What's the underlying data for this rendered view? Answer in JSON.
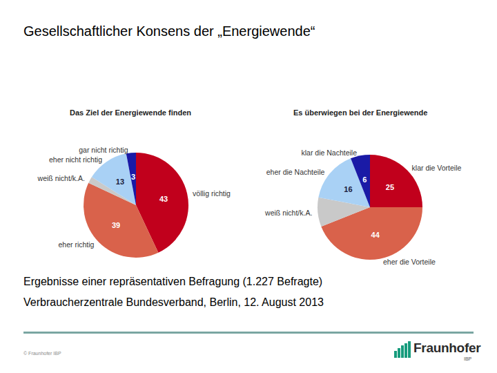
{
  "title": "Gesellschaftlicher Konsens der „Energiewende“",
  "chart_data": [
    {
      "type": "pie",
      "title": "Das Ziel der Energiewende finden",
      "categories": [
        "völlig richtig",
        "eher richtig",
        "weiß nicht/k.A.",
        "eher nicht richtig",
        "gar nicht richtig"
      ],
      "values": [
        43,
        39,
        2,
        13,
        3
      ],
      "value_labels": [
        "43",
        "39",
        null,
        "13",
        "3"
      ],
      "colors": [
        "#c1001c",
        "#d9624b",
        "#c9c9c9",
        "#a9d1f5",
        "#1a1aa6"
      ],
      "data_labels": true
    },
    {
      "type": "pie",
      "title": "Es überwiegen bei der Energiewende",
      "categories": [
        "klar die Vorteile",
        "eher die Vorteile",
        "weiß nicht/k.A.",
        "eher die Nachteile",
        "klar die Nachteile"
      ],
      "values": [
        25,
        44,
        9,
        16,
        6
      ],
      "value_labels": [
        "25",
        "44",
        null,
        "16",
        "6"
      ],
      "colors": [
        "#c1001c",
        "#d9624b",
        "#c9c9c9",
        "#a9d1f5",
        "#1a1aa6"
      ],
      "data_labels": true
    }
  ],
  "caption": [
    "Ergebnisse einer repräsentativen Befragung (1.227 Befragte)",
    "Verbraucherzentrale Bundesverband, Berlin, 12. August 2013"
  ],
  "footer": "© Fraunhofer IBP",
  "logo": {
    "name": "Fraunhofer",
    "unit": "IBP"
  }
}
